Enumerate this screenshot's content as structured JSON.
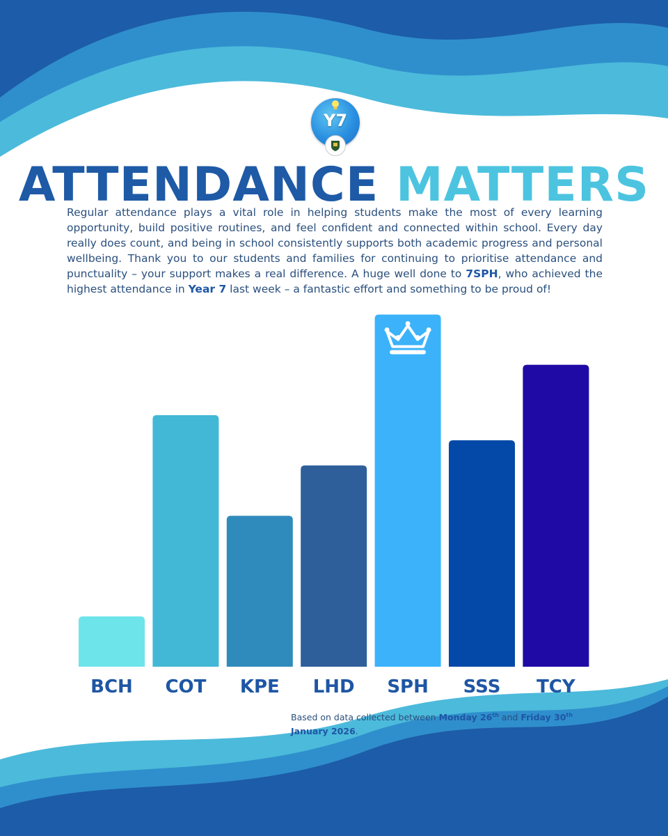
{
  "logo": {
    "label": "Y7"
  },
  "headline": {
    "part1": "ATTENDANCE",
    "part2": "MATTERS"
  },
  "intro": {
    "text1": "Regular attendance plays a vital role in helping students make the most of every learning opportunity, build positive routines, and feel confident and connected within school. Every day really does count, and being in school consistently supports both academic progress and personal wellbeing. Thank you to our students and families for continuing to prioritise attendance and punctuality – your support makes a real difference. A huge well done to ",
    "bold1": "7SPH",
    "text2": ", who achieved the highest attendance in ",
    "bold2": "Year 7",
    "text3": " last week – a fantastic effort and something to be proud of!"
  },
  "chart_data": {
    "type": "bar",
    "title": "",
    "xlabel": "",
    "ylabel": "",
    "categories": [
      "BCH",
      "COT",
      "KPE",
      "LHD",
      "SPH",
      "SSS",
      "TCY"
    ],
    "values": [
      1,
      5,
      3,
      4,
      7,
      4.5,
      6
    ],
    "ylim": [
      0,
      7.2
    ],
    "colors": [
      "#6de4ea",
      "#42b8d6",
      "#2f8bbc",
      "#2e5f9a",
      "#3bb2fa",
      "#0449a8",
      "#1f0aa6"
    ],
    "label_color": "#1e56a4",
    "highlight": "SPH",
    "highlight_icon": "crown-icon",
    "grid": false,
    "legend": "none"
  },
  "footnote": {
    "prefix": "Based on data collected between ",
    "day1": "Monday 26",
    "sup1": "th",
    "mid": " and ",
    "day2": "Friday 30",
    "sup2": "th",
    "month": "January 2026",
    "suffix": "."
  },
  "colors": {
    "dark_blue": "#1e5aa6",
    "light_blue": "#4cc4e0",
    "wave_dark": "#1d5ca8",
    "wave_mid": "#2f8fcc",
    "wave_light": "#4cbadb"
  }
}
